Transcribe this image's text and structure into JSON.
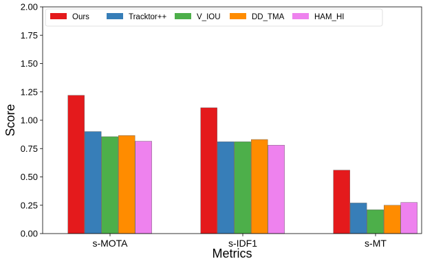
{
  "chart_data": {
    "type": "bar",
    "title": "",
    "xlabel": "Metrics",
    "ylabel": "Score",
    "ylim": [
      0,
      2.0
    ],
    "yticks": [
      "0.00",
      "0.25",
      "0.50",
      "0.75",
      "1.00",
      "1.25",
      "1.50",
      "1.75",
      "2.00"
    ],
    "categories": [
      "s-MOTA",
      "s-IDF1",
      "s-MT"
    ],
    "legend_position": "top",
    "grid": false,
    "series": [
      {
        "name": "Ours",
        "color": "#e41a1c",
        "values": [
          1.22,
          1.11,
          0.56
        ]
      },
      {
        "name": "Tracktor++",
        "color": "#377eb8",
        "values": [
          0.9,
          0.81,
          0.27
        ]
      },
      {
        "name": "V_IOU",
        "color": "#4daf4a",
        "values": [
          0.855,
          0.81,
          0.21
        ]
      },
      {
        "name": "DD_TMA",
        "color": "#ff8c00",
        "values": [
          0.865,
          0.83,
          0.25
        ]
      },
      {
        "name": "HAM_HI",
        "color": "#ee82ee",
        "values": [
          0.815,
          0.78,
          0.275
        ]
      }
    ]
  }
}
